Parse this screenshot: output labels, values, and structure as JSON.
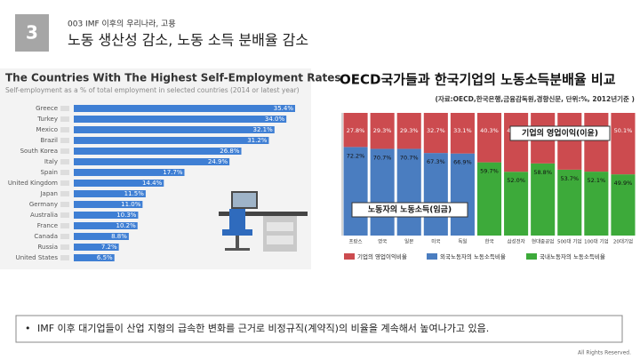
{
  "slide": {
    "number": "3",
    "section": "003 IMF 이후의 우리나라, 고용",
    "title": "노동 생산성 감소, 노동 소득 분배율 감소",
    "bullet": "IMF 이후 대기업들이 산업 지형의 급속한 변화를 근거로 비정규직(계약직)의 비율을 계속해서 높여나가고 있음.",
    "footer": "All Rights Reserved."
  },
  "chart_data": [
    {
      "type": "hbar",
      "title": "The Countries With The Highest Self-Employment Rates",
      "subtitle": "Self-employment as a % of total employment in selected countries (2014 or latest year)",
      "color": "#3f7fd4",
      "categories": [
        "Greece",
        "Turkey",
        "Mexico",
        "Brazil",
        "South Korea",
        "Italy",
        "Spain",
        "United Kingdom",
        "Japan",
        "Germany",
        "Australia",
        "France",
        "Canada",
        "Russia",
        "United States"
      ],
      "values": [
        35.4,
        34.0,
        32.1,
        31.2,
        26.8,
        24.9,
        17.7,
        14.4,
        11.5,
        11.0,
        10.3,
        10.2,
        8.8,
        7.2,
        6.5
      ],
      "value_labels": [
        "35.4%",
        "34.0%",
        "32.1%",
        "31.2%",
        "26.8%",
        "24.9%",
        "17.7%",
        "14.4%",
        "11.5%",
        "11.0%",
        "10.3%",
        "10.2%",
        "8.8%",
        "7.2%",
        "6.5%"
      ]
    },
    {
      "type": "stacked_bar",
      "title": "OECD국가들과 한국기업의 노동소득분배율 비교",
      "subtitle": "(자료:OECD,한국은행,금융감독원,경향신문, 단위:%, 2012년기준 )",
      "categories": [
        "프랑스",
        "영국",
        "일본",
        "미국",
        "독일",
        "한국",
        "삼성전자",
        "현대중공업",
        "500대 기업",
        "100대 기업",
        "20대기업"
      ],
      "ylim": [
        0,
        100
      ],
      "series": [
        {
          "name": "외국노동자의 노동소득비율",
          "color": "#4a7dc0",
          "values": [
            72.2,
            70.7,
            70.7,
            67.3,
            66.9,
            null,
            null,
            null,
            null,
            null,
            null
          ],
          "value_labels": [
            "72.2%",
            "70.7%",
            "70.7%",
            "67.3%",
            "66.9%",
            null,
            null,
            null,
            null,
            null,
            null
          ]
        },
        {
          "name": "국내노동자의 노동소득비율",
          "color": "#3daa3a",
          "values": [
            null,
            null,
            null,
            null,
            null,
            59.7,
            52.0,
            58.8,
            53.7,
            52.1,
            49.9
          ],
          "value_labels": [
            null,
            null,
            null,
            null,
            null,
            "59.7%",
            "52.0%",
            "58.8%",
            "53.7%",
            "52.1%",
            "49.9%"
          ]
        },
        {
          "name": "기업의 영업이익비율",
          "color": "#cc4b4f",
          "values": [
            27.8,
            29.3,
            29.3,
            32.7,
            33.1,
            40.3,
            48.0,
            41.2,
            46.3,
            47.9,
            50.1
          ],
          "value_labels": [
            "27.8%",
            "29.3%",
            "29.3%",
            "32.7%",
            "33.1%",
            "40.3%",
            "48.0%",
            "41.2%",
            "46.3%",
            "47.9%",
            "50.1%"
          ]
        }
      ],
      "legend_order": [
        2,
        0,
        1
      ],
      "annotations": [
        "기업의 영업이익(이윤)",
        "노동자의 노동소득(임금)"
      ]
    }
  ]
}
